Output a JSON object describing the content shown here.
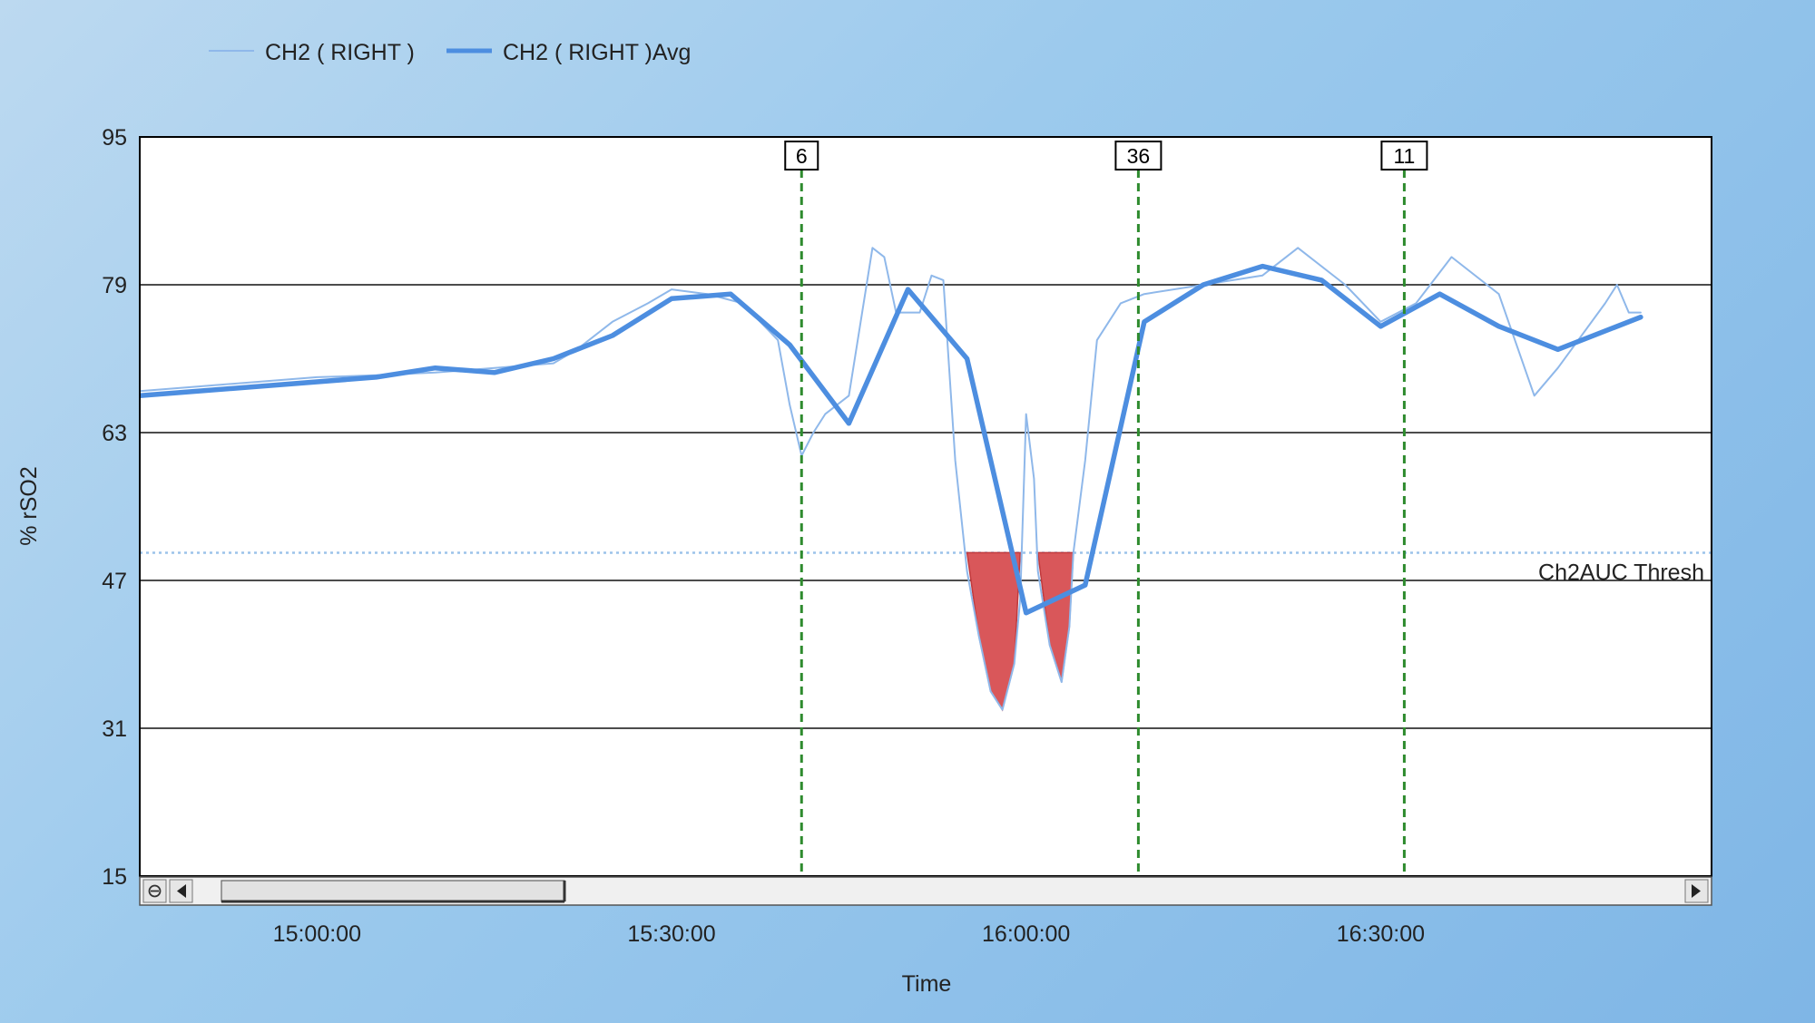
{
  "chart_data": {
    "type": "line",
    "ylabel": "% rSO2",
    "xlabel": "Time",
    "ylim": [
      15,
      95
    ],
    "yticks": [
      "95",
      "79",
      "63",
      "47",
      "31",
      "15"
    ],
    "xlim": [
      "14:45:00",
      "16:58:00"
    ],
    "xticks": [
      "15:00:00",
      "15:30:00",
      "16:00:00",
      "16:30:00"
    ],
    "grid": "horizontal",
    "legend_position": "top-left",
    "series": [
      {
        "name": "CH2 ( RIGHT )",
        "color": "#8fb8ea",
        "points": [
          [
            "14:45:00",
            67.5
          ],
          [
            "14:50:00",
            68.0
          ],
          [
            "14:55:00",
            68.5
          ],
          [
            "15:00:00",
            69.0
          ],
          [
            "15:05:00",
            69.2
          ],
          [
            "15:10:00",
            69.5
          ],
          [
            "15:15:00",
            70.0
          ],
          [
            "15:20:00",
            70.5
          ],
          [
            "15:22:00",
            72.0
          ],
          [
            "15:25:00",
            75.0
          ],
          [
            "15:28:00",
            77.0
          ],
          [
            "15:30:00",
            78.5
          ],
          [
            "15:33:00",
            78.0
          ],
          [
            "15:36:00",
            77.0
          ],
          [
            "15:39:00",
            73.0
          ],
          [
            "15:40:00",
            66.0
          ],
          [
            "15:41:00",
            60.5
          ],
          [
            "15:42:00",
            63.0
          ],
          [
            "15:43:00",
            65.0
          ],
          [
            "15:45:00",
            67.0
          ],
          [
            "15:46:00",
            75.0
          ],
          [
            "15:47:00",
            83.0
          ],
          [
            "15:48:00",
            82.0
          ],
          [
            "15:49:00",
            76.0
          ],
          [
            "15:51:00",
            76.0
          ],
          [
            "15:52:00",
            80.0
          ],
          [
            "15:53:00",
            79.5
          ],
          [
            "15:54:00",
            60.0
          ],
          [
            "15:55:00",
            48.0
          ],
          [
            "15:56:00",
            41.0
          ],
          [
            "15:57:00",
            35.0
          ],
          [
            "15:58:00",
            33.0
          ],
          [
            "15:59:00",
            38.0
          ],
          [
            "15:59:30",
            45.0
          ],
          [
            "16:00:00",
            65.0
          ],
          [
            "16:00:40",
            58.0
          ],
          [
            "16:01:00",
            48.0
          ],
          [
            "16:02:00",
            40.0
          ],
          [
            "16:03:00",
            36.0
          ],
          [
            "16:03:40",
            42.0
          ],
          [
            "16:04:00",
            50.0
          ],
          [
            "16:05:00",
            60.0
          ],
          [
            "16:06:00",
            73.0
          ],
          [
            "16:08:00",
            77.0
          ],
          [
            "16:10:00",
            78.0
          ],
          [
            "16:15:00",
            79.0
          ],
          [
            "16:20:00",
            80.0
          ],
          [
            "16:23:00",
            83.0
          ],
          [
            "16:27:00",
            79.0
          ],
          [
            "16:30:00",
            75.0
          ],
          [
            "16:33:00",
            77.0
          ],
          [
            "16:36:00",
            82.0
          ],
          [
            "16:40:00",
            78.0
          ],
          [
            "16:43:00",
            67.0
          ],
          [
            "16:45:00",
            70.0
          ],
          [
            "16:49:00",
            77.0
          ],
          [
            "16:50:00",
            79.0
          ],
          [
            "16:51:00",
            76.0
          ],
          [
            "16:52:00",
            76.0
          ]
        ]
      },
      {
        "name": "CH2 ( RIGHT )Avg",
        "color": "#4d8ee0",
        "points": [
          [
            "14:45:00",
            67.0
          ],
          [
            "15:05:00",
            69.0
          ],
          [
            "15:10:00",
            70.0
          ],
          [
            "15:15:00",
            69.5
          ],
          [
            "15:20:00",
            71.0
          ],
          [
            "15:25:00",
            73.5
          ],
          [
            "15:30:00",
            77.5
          ],
          [
            "15:35:00",
            78.0
          ],
          [
            "15:40:00",
            72.5
          ],
          [
            "15:45:00",
            64.0
          ],
          [
            "15:50:00",
            78.5
          ],
          [
            "15:55:00",
            71.0
          ],
          [
            "16:00:00",
            43.5
          ],
          [
            "16:05:00",
            46.5
          ],
          [
            "16:10:00",
            75.0
          ],
          [
            "16:15:00",
            79.0
          ],
          [
            "16:20:00",
            81.0
          ],
          [
            "16:25:00",
            79.5
          ],
          [
            "16:30:00",
            74.5
          ],
          [
            "16:35:00",
            78.0
          ],
          [
            "16:40:00",
            74.5
          ],
          [
            "16:45:00",
            72.0
          ],
          [
            "16:52:00",
            75.5
          ]
        ]
      }
    ],
    "threshold": {
      "label": "Ch2AUC Thresh",
      "value": 50
    },
    "auc_regions": [
      {
        "points": [
          [
            "15:55:00",
            50
          ],
          [
            "15:56:00",
            41.0
          ],
          [
            "15:57:00",
            35.0
          ],
          [
            "15:58:00",
            33.0
          ],
          [
            "15:59:00",
            38.0
          ],
          [
            "15:59:30",
            50
          ]
        ]
      },
      {
        "points": [
          [
            "16:01:00",
            50
          ],
          [
            "16:02:00",
            40.0
          ],
          [
            "16:03:00",
            36.0
          ],
          [
            "16:03:40",
            42.0
          ],
          [
            "16:04:00",
            50
          ]
        ]
      }
    ],
    "markers": [
      {
        "label": "6",
        "time": "15:41:00"
      },
      {
        "label": "36",
        "time": "16:09:30"
      },
      {
        "label": "11",
        "time": "16:32:00"
      }
    ]
  }
}
